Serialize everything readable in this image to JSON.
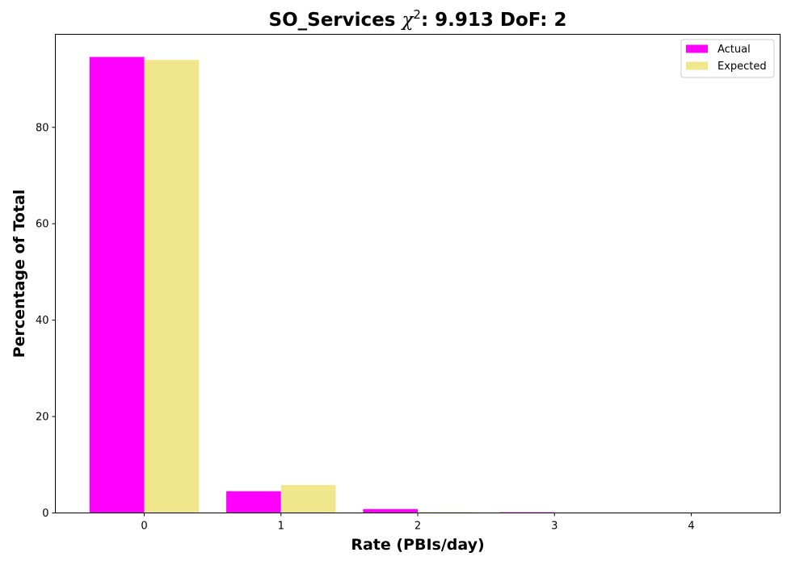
{
  "chart_data": {
    "type": "bar",
    "title": {
      "prefix": "SO_Services ",
      "chi_symbol": "χ",
      "chi_exponent": "2",
      "suffix": ": 9.913 DoF: 2"
    },
    "xlabel": "Rate (PBIs/day)",
    "ylabel": "Percentage of Total",
    "categories": [
      "0",
      "1",
      "2",
      "3",
      "4"
    ],
    "x": [
      0,
      1,
      2,
      3,
      4
    ],
    "xlim": [
      -0.65,
      4.65
    ],
    "ylim": [
      0,
      99.3
    ],
    "yticks": [
      0,
      20,
      40,
      60,
      80
    ],
    "ytick_labels": [
      "0",
      "20",
      "40",
      "60",
      "80"
    ],
    "legend_position": "upper right",
    "grid": false,
    "series": [
      {
        "name": "Actual",
        "color": "#ff00ff",
        "values": [
          94.6,
          4.5,
          0.8,
          0.15,
          0
        ]
      },
      {
        "name": "Expected",
        "color": "#f0e68c",
        "values": [
          94.0,
          5.8,
          0.2,
          0.01,
          0
        ]
      }
    ]
  }
}
